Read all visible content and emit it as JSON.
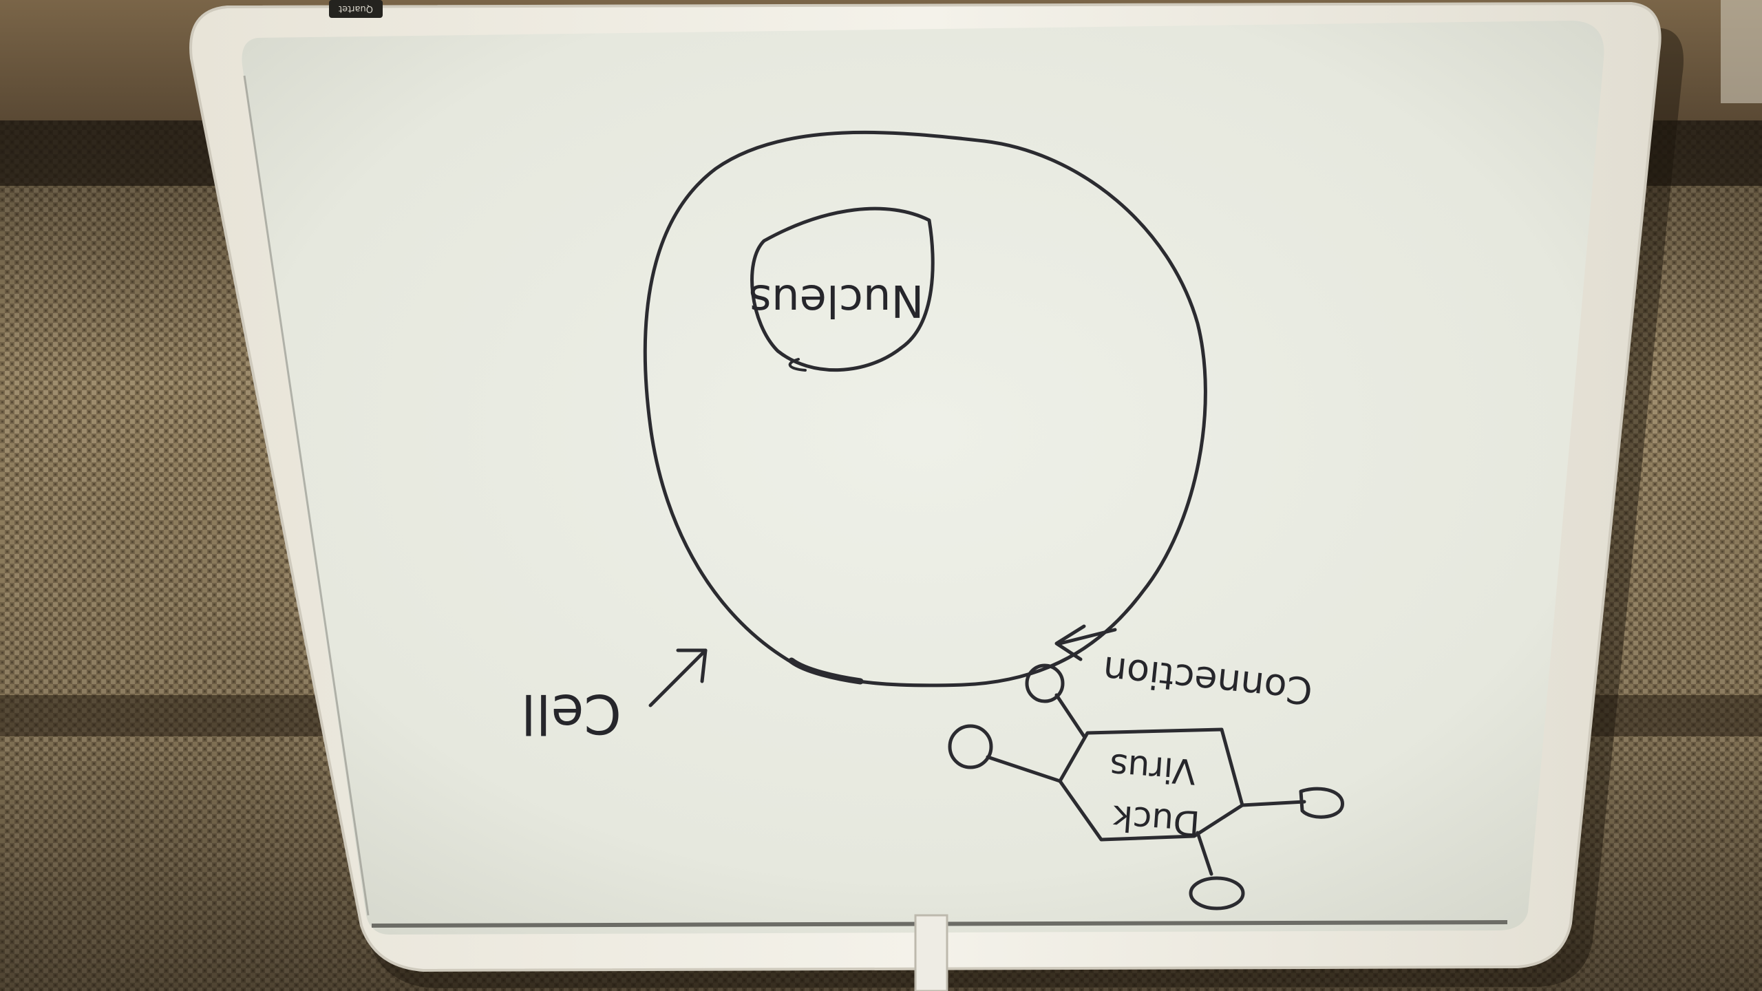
{
  "photo": {
    "subject": "whiteboard-diagram",
    "colors": {
      "marker": "#2b2b30",
      "board": "#e9ebe2",
      "frame": "#f2f1ea",
      "fabric_dark": "#3a3024",
      "fabric_light": "#8c7a5c",
      "wall": "#6a5740"
    }
  },
  "diagram": {
    "orientation": "upside-down",
    "labels": {
      "nucleus": "Nucleus",
      "cell": "Cell",
      "connection": "Connection",
      "virus_line1": "Duck",
      "virus_line2": "Virus"
    }
  },
  "tray": {
    "brand": "Quartet"
  }
}
